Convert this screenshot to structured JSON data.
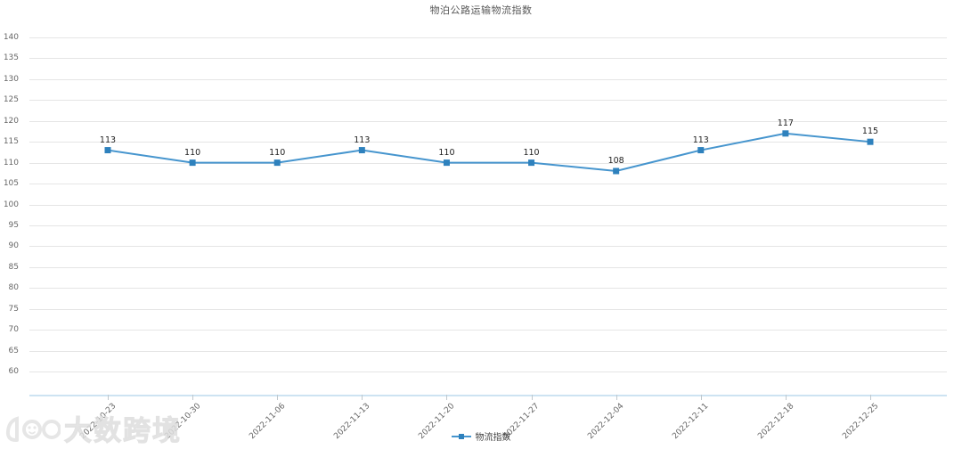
{
  "chart_data": {
    "type": "line",
    "title": "物泊公路运输物流指数",
    "categories": [
      "2022-10-23",
      "2022-10-30",
      "2022-11-06",
      "2022-11-13",
      "2022-11-20",
      "2022-11-27",
      "2022-12-04",
      "2022-12-11",
      "2022-12-18",
      "2022-12-25"
    ],
    "series": [
      {
        "name": "物流指数",
        "values": [
          113,
          110,
          110,
          113,
          110,
          110,
          108,
          113,
          117,
          115
        ]
      }
    ],
    "y_ticks": [
      140,
      135,
      130,
      125,
      120,
      115,
      110,
      105,
      100,
      95,
      90,
      85,
      80,
      75,
      70,
      65,
      60
    ],
    "ylim": [
      55,
      140
    ],
    "xlabel": "",
    "ylabel": "",
    "grid": "on",
    "legend_position": "bottom",
    "marker": "square",
    "data_labels": "on"
  },
  "colors": {
    "line": "#4695ce",
    "marker": "#2e81bd",
    "grid": "#e5e5e5",
    "axis_line": "#cde3f2",
    "axis_text": "#666666",
    "data_label_text": "#222222"
  },
  "watermark": {
    "logo": "100",
    "text": "大数跨境"
  }
}
